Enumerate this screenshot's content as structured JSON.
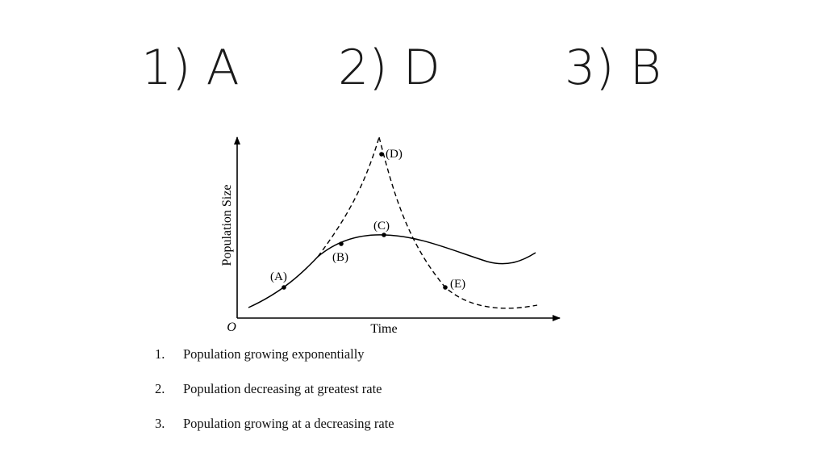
{
  "answers": [
    "1) A",
    "2) D",
    "3) B"
  ],
  "graph": {
    "y_axis_label": "Population Size",
    "x_axis_label": "Time",
    "origin_label": "O",
    "points": {
      "A": "(A)",
      "B": "(B)",
      "C": "(C)",
      "D": "(D)",
      "E": "(E)"
    },
    "line_styles": [
      "solid",
      "dashed"
    ]
  },
  "statements": [
    {
      "number": "1.",
      "text": "Population growing exponentially"
    },
    {
      "number": "2.",
      "text": "Population decreasing at greatest rate"
    },
    {
      "number": "3.",
      "text": "Population growing at a decreasing rate"
    }
  ]
}
